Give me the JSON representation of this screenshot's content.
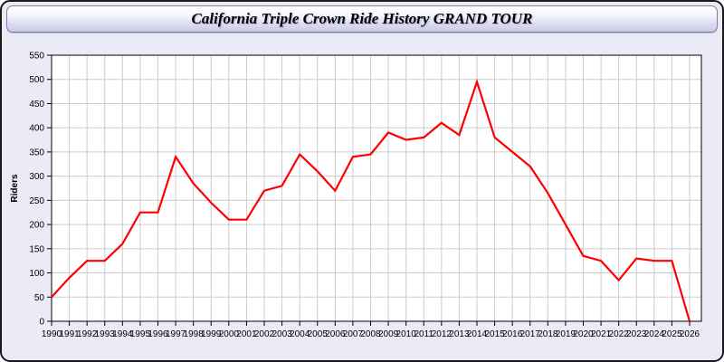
{
  "window": {
    "title": "California Triple Crown Ride History GRAND TOUR"
  },
  "colors": {
    "line": "#ff0000",
    "plot_background": "#ffffff",
    "grid": "#cccccc",
    "axis": "#000000",
    "body_background": "#ebebf8",
    "titlebar_gradient_top": "#ffffff",
    "titlebar_gradient_bottom": "#c9c9e6"
  },
  "chart_data": {
    "type": "line",
    "title": "California Triple Crown Ride History GRAND TOUR",
    "xlabel": "",
    "ylabel": "Riders",
    "categories": [
      1990,
      1991,
      1992,
      1993,
      1994,
      1995,
      1996,
      1997,
      1998,
      1999,
      2000,
      2001,
      2002,
      2003,
      2004,
      2005,
      2006,
      2007,
      2008,
      2009,
      2010,
      2011,
      2012,
      2013,
      2014,
      2015,
      2016,
      2017,
      2018,
      2019,
      2020,
      2021,
      2022,
      2023,
      2024,
      2025,
      2026
    ],
    "series": [
      {
        "name": "Riders",
        "color": "#ff0000",
        "values": [
          50,
          90,
          125,
          125,
          160,
          225,
          225,
          340,
          285,
          245,
          210,
          210,
          270,
          280,
          345,
          310,
          270,
          340,
          345,
          390,
          375,
          380,
          410,
          385,
          495,
          380,
          350,
          320,
          265,
          200,
          135,
          125,
          85,
          130,
          125,
          125,
          0
        ]
      }
    ],
    "ylim": [
      0,
      550
    ],
    "yticks": [
      0,
      50,
      100,
      150,
      200,
      250,
      300,
      350,
      400,
      450,
      500,
      550
    ],
    "grid": true,
    "legend": false
  }
}
